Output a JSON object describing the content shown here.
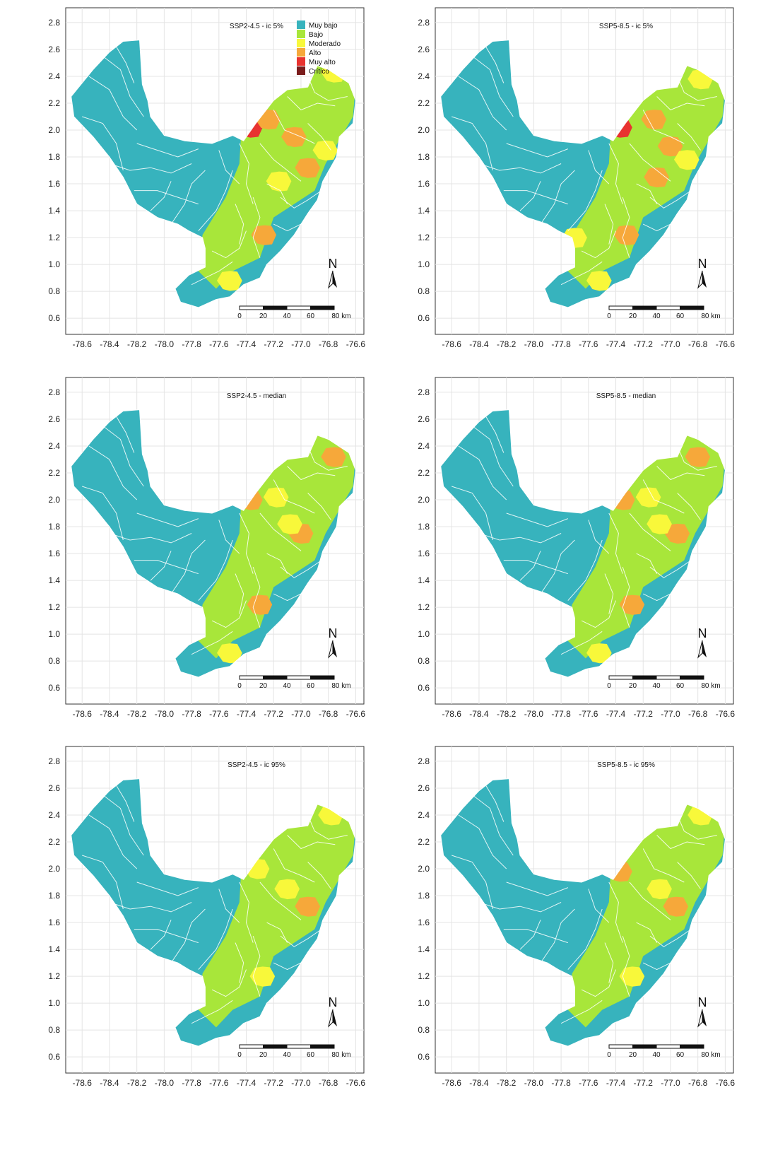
{
  "figure": {
    "axes": {
      "x_ticks": [
        "-78.6",
        "-78.4",
        "-78.2",
        "-78.0",
        "-77.8",
        "-77.6",
        "-77.4",
        "-77.2",
        "-77.0",
        "-76.8",
        "-76.6"
      ],
      "y_ticks": [
        "2.8",
        "2.6",
        "2.4",
        "2.2",
        "2.0",
        "1.8",
        "1.6",
        "1.4",
        "1.2",
        "1.0",
        "0.8",
        "0.6"
      ],
      "x_range": [
        -78.72,
        -76.54
      ],
      "y_range": [
        0.48,
        2.91
      ]
    },
    "legend": {
      "placement": "top-right",
      "items": [
        {
          "label": "Muy bajo",
          "color": "#37b3bd"
        },
        {
          "label": "Bajo",
          "color": "#a8e63a"
        },
        {
          "label": "Moderado",
          "color": "#f8f83a"
        },
        {
          "label": "Alto",
          "color": "#f6a83a"
        },
        {
          "label": "Muy alto",
          "color": "#e83330"
        },
        {
          "label": "Crítico",
          "color": "#7a1c1c"
        }
      ]
    },
    "north_arrow": {
      "label": "N",
      "icon": "north-arrow-icon"
    },
    "scale_bar": {
      "ticks": [
        "0",
        "20",
        "40",
        "60",
        "80 km"
      ]
    },
    "panels": [
      {
        "title": "SSP2-4.5 - ic 5%",
        "show_legend": true,
        "zones": [
          {
            "lon": -77.37,
            "lat": 2.02,
            "class": "Muy alto"
          },
          {
            "lon": -77.24,
            "lat": 2.08,
            "class": "Alto"
          },
          {
            "lon": -77.05,
            "lat": 1.95,
            "class": "Alto"
          },
          {
            "lon": -76.95,
            "lat": 1.72,
            "class": "Alto"
          },
          {
            "lon": -77.27,
            "lat": 1.22,
            "class": "Alto"
          },
          {
            "lon": -77.16,
            "lat": 1.62,
            "class": "Moderado"
          },
          {
            "lon": -76.82,
            "lat": 1.85,
            "class": "Moderado"
          },
          {
            "lon": -77.52,
            "lat": 0.88,
            "class": "Moderado"
          },
          {
            "lon": -76.76,
            "lat": 2.43,
            "class": "Moderado"
          }
        ]
      },
      {
        "title": "SSP5-8.5 - ic 5%",
        "show_legend": false,
        "zones": [
          {
            "lon": -77.37,
            "lat": 2.02,
            "class": "Muy alto"
          },
          {
            "lon": -77.12,
            "lat": 2.08,
            "class": "Alto"
          },
          {
            "lon": -77.1,
            "lat": 1.65,
            "class": "Alto"
          },
          {
            "lon": -77.0,
            "lat": 1.88,
            "class": "Alto"
          },
          {
            "lon": -77.32,
            "lat": 1.22,
            "class": "Alto"
          },
          {
            "lon": -76.88,
            "lat": 1.78,
            "class": "Moderado"
          },
          {
            "lon": -77.52,
            "lat": 0.88,
            "class": "Moderado"
          },
          {
            "lon": -77.7,
            "lat": 1.2,
            "class": "Moderado"
          },
          {
            "lon": -76.78,
            "lat": 2.38,
            "class": "Moderado"
          }
        ]
      },
      {
        "title": "SSP2-4.5 - median",
        "show_legend": false,
        "zones": [
          {
            "lon": -77.37,
            "lat": 2.0,
            "class": "Alto"
          },
          {
            "lon": -77.0,
            "lat": 1.75,
            "class": "Alto"
          },
          {
            "lon": -77.3,
            "lat": 1.22,
            "class": "Alto"
          },
          {
            "lon": -77.18,
            "lat": 2.02,
            "class": "Moderado"
          },
          {
            "lon": -77.08,
            "lat": 1.82,
            "class": "Moderado"
          },
          {
            "lon": -77.52,
            "lat": 0.86,
            "class": "Moderado"
          },
          {
            "lon": -76.76,
            "lat": 2.32,
            "class": "Alto"
          }
        ]
      },
      {
        "title": "SSP5-8.5 - median",
        "show_legend": false,
        "zones": [
          {
            "lon": -77.35,
            "lat": 2.0,
            "class": "Alto"
          },
          {
            "lon": -76.95,
            "lat": 1.75,
            "class": "Alto"
          },
          {
            "lon": -77.28,
            "lat": 1.22,
            "class": "Alto"
          },
          {
            "lon": -77.16,
            "lat": 2.02,
            "class": "Moderado"
          },
          {
            "lon": -77.08,
            "lat": 1.82,
            "class": "Moderado"
          },
          {
            "lon": -77.52,
            "lat": 0.86,
            "class": "Moderado"
          },
          {
            "lon": -76.8,
            "lat": 2.32,
            "class": "Alto"
          }
        ]
      },
      {
        "title": "SSP2-4.5 - ic 95%",
        "show_legend": false,
        "zones": [
          {
            "lon": -77.32,
            "lat": 2.0,
            "class": "Moderado"
          },
          {
            "lon": -77.1,
            "lat": 1.85,
            "class": "Moderado"
          },
          {
            "lon": -76.95,
            "lat": 1.72,
            "class": "Alto"
          },
          {
            "lon": -77.28,
            "lat": 1.2,
            "class": "Moderado"
          },
          {
            "lon": -76.78,
            "lat": 2.4,
            "class": "Moderado"
          }
        ]
      },
      {
        "title": "SSP5-8.5 - ic 95%",
        "show_legend": false,
        "zones": [
          {
            "lon": -77.37,
            "lat": 1.98,
            "class": "Alto"
          },
          {
            "lon": -77.08,
            "lat": 1.85,
            "class": "Moderado"
          },
          {
            "lon": -76.96,
            "lat": 1.72,
            "class": "Alto"
          },
          {
            "lon": -77.28,
            "lat": 1.2,
            "class": "Moderado"
          },
          {
            "lon": -76.78,
            "lat": 2.4,
            "class": "Moderado"
          }
        ]
      }
    ]
  }
}
